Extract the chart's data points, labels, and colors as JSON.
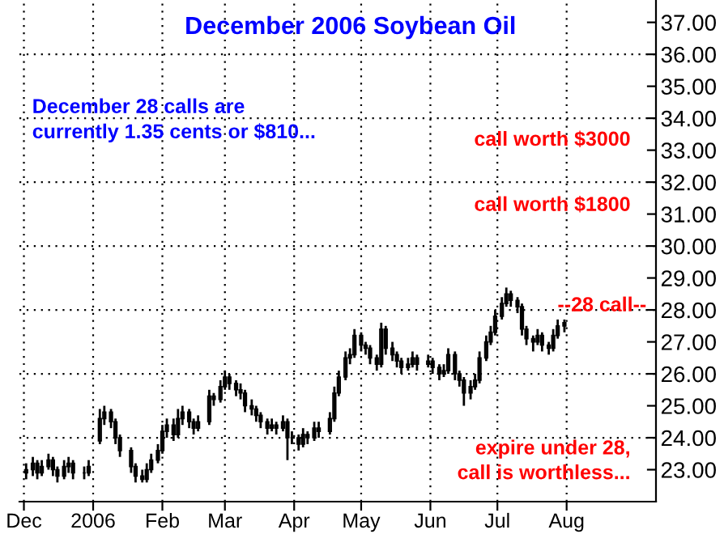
{
  "chart_data": {
    "type": "candlestick",
    "title": "December 2006 Soybean Oil",
    "annotations": [
      "December 28 calls are\ncurrently 1.35 cents or $810...",
      "call worth $3000",
      "call worth $1800",
      "--28 call--",
      "expire under 28,\ncall is worthless..."
    ],
    "color": "#000000",
    "x": [
      "2005-12-02",
      "2005-12-05",
      "2005-12-07",
      "2005-12-09",
      "2005-12-12",
      "2005-12-14",
      "2005-12-16",
      "2005-12-19",
      "2005-12-21",
      "2005-12-23",
      "2005-12-28",
      "2005-12-30",
      "2006-01-04",
      "2006-01-06",
      "2006-01-09",
      "2006-01-11",
      "2006-01-13",
      "2006-01-18",
      "2006-01-20",
      "2006-01-23",
      "2006-01-25",
      "2006-01-27",
      "2006-01-30",
      "2006-02-01",
      "2006-02-03",
      "2006-02-06",
      "2006-02-08",
      "2006-02-10",
      "2006-02-13",
      "2006-02-15",
      "2006-02-17",
      "2006-02-22",
      "2006-02-24",
      "2006-02-27",
      "2006-03-01",
      "2006-03-03",
      "2006-03-06",
      "2006-03-08",
      "2006-03-10",
      "2006-03-13",
      "2006-03-15",
      "2006-03-17",
      "2006-03-20",
      "2006-03-22",
      "2006-03-24",
      "2006-03-27",
      "2006-03-29",
      "2006-03-31",
      "2006-04-03",
      "2006-04-05",
      "2006-04-07",
      "2006-04-10",
      "2006-04-12",
      "2006-04-17",
      "2006-04-19",
      "2006-04-21",
      "2006-04-24",
      "2006-04-26",
      "2006-04-28",
      "2006-05-01",
      "2006-05-03",
      "2006-05-05",
      "2006-05-08",
      "2006-05-10",
      "2006-05-12",
      "2006-05-15",
      "2006-05-17",
      "2006-05-19",
      "2006-05-22",
      "2006-05-24",
      "2006-05-26",
      "2006-05-31",
      "2006-06-02",
      "2006-06-05",
      "2006-06-07",
      "2006-06-09",
      "2006-06-12",
      "2006-06-14",
      "2006-06-16",
      "2006-06-19",
      "2006-06-21",
      "2006-06-23",
      "2006-06-26",
      "2006-06-28",
      "2006-06-30",
      "2006-07-03",
      "2006-07-05",
      "2006-07-07",
      "2006-07-10",
      "2006-07-12",
      "2006-07-14",
      "2006-07-17",
      "2006-07-19",
      "2006-07-21",
      "2006-07-24",
      "2006-07-26",
      "2006-07-28",
      "2006-07-31"
    ],
    "ohlc": [
      [
        22.9,
        23.2,
        22.7,
        23.0
      ],
      [
        23.0,
        23.4,
        22.8,
        23.2
      ],
      [
        23.2,
        23.3,
        22.7,
        22.9
      ],
      [
        22.9,
        23.3,
        22.8,
        23.1
      ],
      [
        23.1,
        23.5,
        23.0,
        23.3
      ],
      [
        23.3,
        23.4,
        22.8,
        23.0
      ],
      [
        23.0,
        23.1,
        22.6,
        22.8
      ],
      [
        22.8,
        23.3,
        22.7,
        23.1
      ],
      [
        23.1,
        23.4,
        22.9,
        23.2
      ],
      [
        23.2,
        23.3,
        22.7,
        22.9
      ],
      [
        22.9,
        23.1,
        22.7,
        22.9
      ],
      [
        22.9,
        23.3,
        22.8,
        23.1
      ],
      [
        23.9,
        24.9,
        23.8,
        24.6
      ],
      [
        24.6,
        25.0,
        24.4,
        24.8
      ],
      [
        24.8,
        24.9,
        24.3,
        24.5
      ],
      [
        24.5,
        24.6,
        23.8,
        24.0
      ],
      [
        24.0,
        24.1,
        23.4,
        23.6
      ],
      [
        23.6,
        23.7,
        22.9,
        23.1
      ],
      [
        23.1,
        23.2,
        22.6,
        22.8
      ],
      [
        22.8,
        23.0,
        22.6,
        22.7
      ],
      [
        22.7,
        23.2,
        22.6,
        23.0
      ],
      [
        23.0,
        23.5,
        22.9,
        23.3
      ],
      [
        23.3,
        23.8,
        23.2,
        23.6
      ],
      [
        23.6,
        24.4,
        23.5,
        24.2
      ],
      [
        24.2,
        24.6,
        24.0,
        24.4
      ],
      [
        24.4,
        24.6,
        23.9,
        24.1
      ],
      [
        24.1,
        24.9,
        24.0,
        24.6
      ],
      [
        24.6,
        25.0,
        24.4,
        24.8
      ],
      [
        24.8,
        24.9,
        24.3,
        24.5
      ],
      [
        24.5,
        24.6,
        24.1,
        24.3
      ],
      [
        24.3,
        24.7,
        24.2,
        24.5
      ],
      [
        24.5,
        25.5,
        24.4,
        25.3
      ],
      [
        25.3,
        25.4,
        25.0,
        25.2
      ],
      [
        25.2,
        25.8,
        25.1,
        25.6
      ],
      [
        25.6,
        26.1,
        25.5,
        25.9
      ],
      [
        25.9,
        26.0,
        25.5,
        25.7
      ],
      [
        25.7,
        25.8,
        25.3,
        25.5
      ],
      [
        25.5,
        25.7,
        25.2,
        25.4
      ],
      [
        25.4,
        25.5,
        24.8,
        25.0
      ],
      [
        25.0,
        25.2,
        24.7,
        24.9
      ],
      [
        24.9,
        25.0,
        24.5,
        24.7
      ],
      [
        24.7,
        24.8,
        24.3,
        24.5
      ],
      [
        24.5,
        24.6,
        24.1,
        24.3
      ],
      [
        24.3,
        24.6,
        24.2,
        24.4
      ],
      [
        24.4,
        24.5,
        24.1,
        24.3
      ],
      [
        24.3,
        24.7,
        24.2,
        24.5
      ],
      [
        24.5,
        24.6,
        23.3,
        24.0
      ],
      [
        24.0,
        24.2,
        23.8,
        24.0
      ],
      [
        24.0,
        24.1,
        23.6,
        23.8
      ],
      [
        23.8,
        24.3,
        23.7,
        24.1
      ],
      [
        24.1,
        24.2,
        23.8,
        24.0
      ],
      [
        24.0,
        24.5,
        23.9,
        24.3
      ],
      [
        24.3,
        24.5,
        24.0,
        24.2
      ],
      [
        24.2,
        24.8,
        24.1,
        24.6
      ],
      [
        24.6,
        25.6,
        24.5,
        25.4
      ],
      [
        25.4,
        26.1,
        25.3,
        25.9
      ],
      [
        25.9,
        26.7,
        25.8,
        26.5
      ],
      [
        26.5,
        26.8,
        26.3,
        26.6
      ],
      [
        26.6,
        27.4,
        26.5,
        27.2
      ],
      [
        27.2,
        27.3,
        26.7,
        26.9
      ],
      [
        26.9,
        27.0,
        26.6,
        26.8
      ],
      [
        26.8,
        26.9,
        26.3,
        26.5
      ],
      [
        26.5,
        26.6,
        26.1,
        26.3
      ],
      [
        26.3,
        27.6,
        26.2,
        27.4
      ],
      [
        27.4,
        27.5,
        26.6,
        26.8
      ],
      [
        26.8,
        27.0,
        26.4,
        26.6
      ],
      [
        26.6,
        26.7,
        26.2,
        26.4
      ],
      [
        26.4,
        26.5,
        26.0,
        26.2
      ],
      [
        26.2,
        26.5,
        26.1,
        26.3
      ],
      [
        26.3,
        26.7,
        26.2,
        26.5
      ],
      [
        26.5,
        26.6,
        26.1,
        26.3
      ],
      [
        26.3,
        26.6,
        26.2,
        26.4
      ],
      [
        26.4,
        26.5,
        26.0,
        26.2
      ],
      [
        26.2,
        26.3,
        25.8,
        26.0
      ],
      [
        26.0,
        26.3,
        25.9,
        26.1
      ],
      [
        26.1,
        26.8,
        26.0,
        26.6
      ],
      [
        26.6,
        26.7,
        25.8,
        26.0
      ],
      [
        26.0,
        26.1,
        25.6,
        25.8
      ],
      [
        25.8,
        25.9,
        25.0,
        25.4
      ],
      [
        25.4,
        25.8,
        25.2,
        25.6
      ],
      [
        25.6,
        26.0,
        25.5,
        25.8
      ],
      [
        25.8,
        26.7,
        25.7,
        26.5
      ],
      [
        26.5,
        27.2,
        26.4,
        27.0
      ],
      [
        27.0,
        27.5,
        26.9,
        27.3
      ],
      [
        27.3,
        28.0,
        27.2,
        27.8
      ],
      [
        27.8,
        28.4,
        27.7,
        28.2
      ],
      [
        28.2,
        28.7,
        28.1,
        28.5
      ],
      [
        28.5,
        28.6,
        28.1,
        28.3
      ],
      [
        28.3,
        28.4,
        27.9,
        28.1
      ],
      [
        28.1,
        28.2,
        27.2,
        27.4
      ],
      [
        27.4,
        27.5,
        26.9,
        27.1
      ],
      [
        27.1,
        27.2,
        26.7,
        27.0
      ],
      [
        27.0,
        27.4,
        26.9,
        27.2
      ],
      [
        27.2,
        27.3,
        26.7,
        26.9
      ],
      [
        26.9,
        27.0,
        26.6,
        26.8
      ],
      [
        26.8,
        27.4,
        26.7,
        27.2
      ],
      [
        27.2,
        27.7,
        27.1,
        27.5
      ],
      [
        27.5,
        27.7,
        27.3,
        27.6
      ]
    ],
    "xlim": [
      "2005-11-29",
      "2006-09-10"
    ],
    "xticks": [
      {
        "value": "2005-12-01",
        "label": "Dec"
      },
      {
        "value": "2006-01-01",
        "label": "2006"
      },
      {
        "value": "2006-02-01",
        "label": "Feb"
      },
      {
        "value": "2006-03-01",
        "label": "Mar"
      },
      {
        "value": "2006-04-01",
        "label": "Apr"
      },
      {
        "value": "2006-05-01",
        "label": "May"
      },
      {
        "value": "2006-06-01",
        "label": "Jun"
      },
      {
        "value": "2006-07-01",
        "label": "Jul"
      },
      {
        "value": "2006-08-01",
        "label": "Aug"
      }
    ],
    "ylim": [
      22,
      37.7
    ],
    "yticks": [
      {
        "value": 23,
        "label": "23.00"
      },
      {
        "value": 24,
        "label": "24.00"
      },
      {
        "value": 25,
        "label": "25.00"
      },
      {
        "value": 26,
        "label": "26.00"
      },
      {
        "value": 27,
        "label": "27.00"
      },
      {
        "value": 28,
        "label": "28.00"
      },
      {
        "value": 29,
        "label": "29.00"
      },
      {
        "value": 30,
        "label": "30.00"
      },
      {
        "value": 31,
        "label": "31.00"
      },
      {
        "value": 32,
        "label": "32.00"
      },
      {
        "value": 33,
        "label": "33.00"
      },
      {
        "value": 34,
        "label": "34.00"
      },
      {
        "value": 35,
        "label": "35.00"
      },
      {
        "value": 36,
        "label": "36.00"
      },
      {
        "value": 37,
        "label": "37.00"
      }
    ],
    "grid": true
  }
}
